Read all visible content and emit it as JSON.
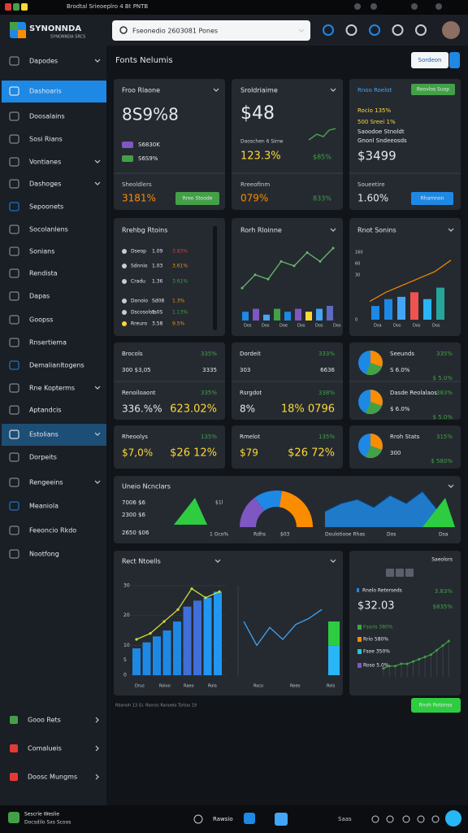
{
  "status_bar": {
    "text": "Brodtal Srieoeplro 4 Bt PNTB"
  },
  "header": {
    "brand": "SYNONNDA",
    "brand_sub": "SYNONNDA SRCS",
    "search": "Fseonedio 2603081 Pones"
  },
  "sidebar": {
    "items": [
      "Dapodes",
      "Dashoaris",
      "Doosalains",
      "Sosi Rians",
      "Vontianes",
      "Dashoges",
      "Sepoonets",
      "Socolanlens",
      "Sonians",
      "Rendista",
      "Dapas",
      "Goopss",
      "Rnsertiema",
      "Demalianltogens",
      "Rne Kopterms",
      "Aptandcis",
      "Estolians",
      "Dorpeits",
      "Rengeeins",
      "Meaniola",
      "Feeoncio Rkdo",
      "Nootfong"
    ],
    "bottom_items": [
      "Gooo Rets",
      "Comalueis",
      "Doosc Mungms"
    ]
  },
  "footer": {
    "brand": "Sescrle Weslie",
    "brand_sub": "Docsdilo Sxs Scoos",
    "center": "Rawsio",
    "right": "Saas"
  },
  "page": {
    "title": "Fonts Nelumis",
    "button": "Sordeon"
  },
  "card_a": {
    "title": "Froo Rlaone",
    "value": "8S9%8",
    "rows": [
      "S6830K",
      "S6S9%"
    ],
    "foot_label": "Sheoldlers",
    "foot_value": "3181%",
    "button": "Rreo Stoode"
  },
  "card_b": {
    "title": "Sroldriaime",
    "value": "$48",
    "caption": "Daoschen 6 Sirrw",
    "rows": [
      "123.3%",
      "$85%"
    ],
    "foot_label": "Rreeofinm",
    "foot_value": "079%",
    "foot_value2": "833%"
  },
  "card_c": {
    "title": "Rnoo Roelot",
    "button_top": "Roovlos Suop",
    "rows": [
      "Rocio 135%",
      "500 Sreei 1%",
      "Saoodoe Stnoldt",
      "Gnonl Sndeeosds"
    ],
    "value": "$3499",
    "foot_label": "Soueetire",
    "foot_value": "1.60%",
    "button": "Rhamnon"
  },
  "trading_card": {
    "title": "Rrehbg Rtoins",
    "rows": [
      [
        "Dseop",
        "1.09",
        "3.83%"
      ],
      [
        "Sdnnio",
        "1.03",
        "3.61%"
      ],
      [
        "Cradu",
        "1.36",
        "3.61%"
      ],
      [
        "Donoio",
        "Sd08",
        "1.3%"
      ],
      [
        "Dscosolsts",
        "1.0S",
        "1.13%"
      ],
      [
        "Rreuro",
        "3.58",
        "9.5%"
      ]
    ]
  },
  "bar_line_card": {
    "title": "Rorh Rloinne",
    "bars": [
      3,
      4,
      2,
      4,
      3,
      4,
      3,
      4,
      5
    ],
    "line": [
      2,
      5,
      4,
      8,
      7,
      10,
      8,
      11
    ],
    "x_labels": [
      "Dos",
      "Dos",
      "Doe",
      "Dos",
      "Dos",
      "Dos"
    ]
  },
  "stack_card": {
    "title": "Rnot Sonins",
    "yticks": [
      160,
      60,
      30,
      0
    ],
    "bars": [
      30,
      45,
      50,
      60,
      45,
      70
    ],
    "line": [
      40,
      60,
      75,
      90,
      105,
      130
    ],
    "x_labels": [
      "Dsa",
      "Dos",
      "Dos",
      "Dos"
    ]
  },
  "tiles": [
    {
      "title": "Brocols",
      "badge": "335%",
      "a": "300  $3,05",
      "b": "3335"
    },
    {
      "title": "Dordeit",
      "badge": "333%",
      "a": "303",
      "b": "6636"
    },
    {
      "title": "Seeunds",
      "badge": "335%",
      "a": "S 6.0%",
      "b": "$ 5.0%"
    },
    {
      "title": "Renoiloaont",
      "badge": "335%",
      "a": "336.%%",
      "b": "623.02%"
    },
    {
      "title": "Rsrgdot",
      "badge": "338%",
      "a": "8%",
      "b": "18%  0796"
    },
    {
      "title": "Dasde Reolalaos",
      "badge": "383%",
      "a": "$ 6.0%",
      "b": "$ 5.0%"
    },
    {
      "title": "Rheoolys",
      "badge": "135%",
      "a": "$7,0%",
      "b": "$26 12%"
    },
    {
      "title": "Rmelot",
      "badge": "135%",
      "a": "$79",
      "b": "$26 72%"
    },
    {
      "title": "Rroh Stats",
      "badge": "315%",
      "a": "300",
      "b": "$ 580%"
    }
  ],
  "wide_card": {
    "title": "Uneio Ncnclars",
    "rows": [
      "7006  $6",
      "2300  $6",
      "2650  $06"
    ],
    "gauge": [
      30,
      25,
      45
    ],
    "labels": [
      "$1l",
      "1 Oco%",
      "Rdhs",
      "$03",
      "Doulotiooe Rhas",
      "Dos",
      "Dsa"
    ],
    "area": [
      20,
      30,
      35,
      25,
      40,
      30,
      45,
      20
    ]
  },
  "big_card": {
    "title": "Rect Ntoells",
    "ylim": [
      0,
      30
    ],
    "yticks": [
      30,
      20,
      10,
      5,
      0
    ],
    "bars": [
      9,
      11,
      13,
      15,
      18,
      23,
      25,
      26,
      28
    ],
    "line": [
      12,
      14,
      18,
      22,
      29,
      26,
      28
    ],
    "x_labels": [
      "Drus",
      "Rolvo",
      "Raeo",
      "Rola"
    ],
    "line2": [
      18,
      10,
      16,
      12,
      17,
      19,
      22
    ],
    "x_labels2": [
      "Roco",
      "Reeo",
      "Rols"
    ],
    "stack": [
      10,
      18
    ]
  },
  "side_card": {
    "header": "Saeolors",
    "row": "Rnelo Reterseds",
    "row_value": "3.83%",
    "value": "$32.03",
    "value2": "$835%",
    "list": [
      "Fsoris  380%",
      "Rrio  580%",
      "Fsoe  350%",
      "Roso  5.0%"
    ],
    "spark": [
      3,
      4,
      4,
      5,
      5,
      6,
      7,
      8,
      9,
      11,
      13,
      15
    ]
  },
  "footnote": "Rbanoh 13 Gi. Roorss Ranoelo Tsrtoo 19",
  "bottom_button": "Rnoh Rotonss"
}
